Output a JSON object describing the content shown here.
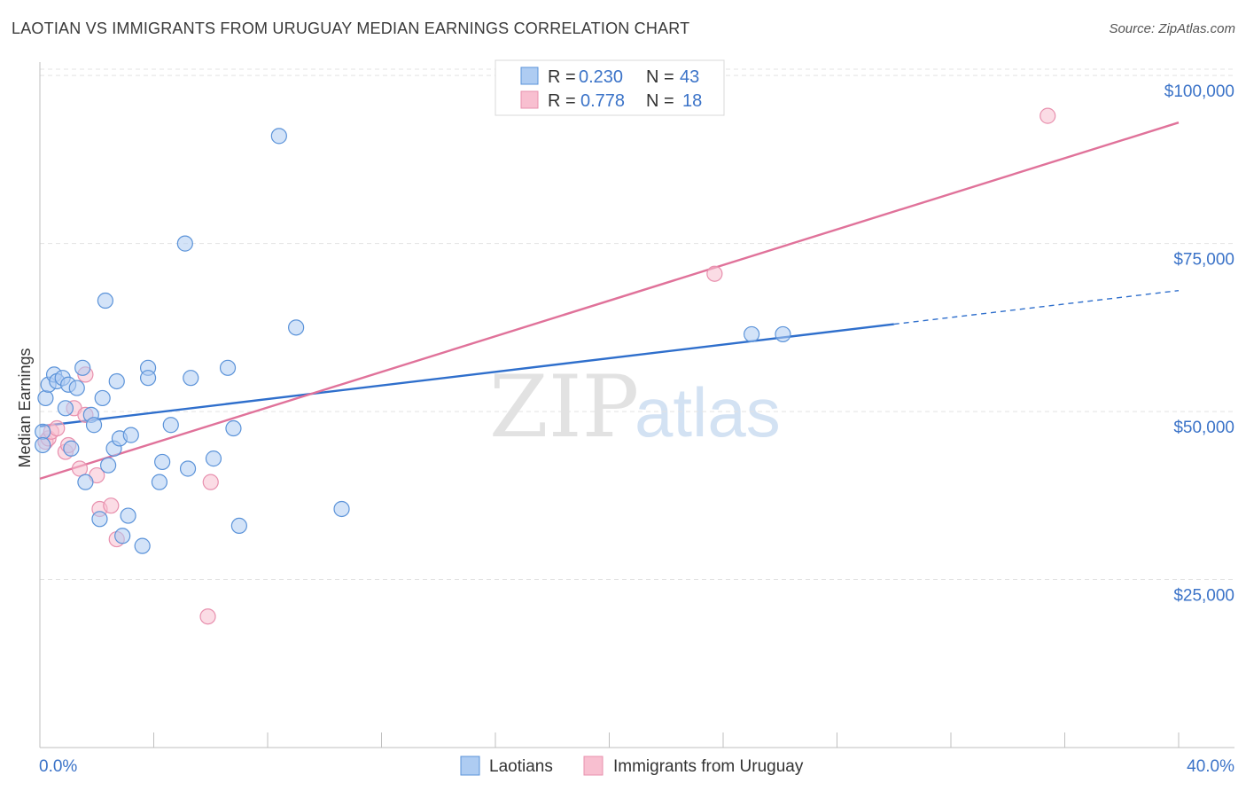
{
  "header": {
    "title": "LAOTIAN VS IMMIGRANTS FROM URUGUAY MEDIAN EARNINGS CORRELATION CHART",
    "source": "Source: ZipAtlas.com"
  },
  "watermark": {
    "zip": "ZIP",
    "atlas": "atlas"
  },
  "legend": {
    "rows": [
      {
        "r_label": "R =",
        "r_value": "0.230",
        "n_label": "N =",
        "n_value": "43"
      },
      {
        "r_label": "R =",
        "r_value": "0.778",
        "n_label": "N =",
        "n_value": "18"
      }
    ]
  },
  "bottom_legend": [
    {
      "label": "Laotians"
    },
    {
      "label": "Immigrants from Uruguay"
    }
  ],
  "colors": {
    "blue_fill": "#aeccf2",
    "blue_stroke": "#5b93d9",
    "blue_line": "#2f6fcc",
    "pink_fill": "#f8bfd0",
    "pink_stroke": "#e890ae",
    "pink_line": "#e0729a",
    "grid": "#e3e3e3",
    "axis_text": "#3b73c8"
  },
  "chart_data": {
    "type": "scatter",
    "title": "LAOTIAN VS IMMIGRANTS FROM URUGUAY MEDIAN EARNINGS CORRELATION CHART",
    "xlabel": "",
    "ylabel": "Median Earnings",
    "xlim": [
      0,
      40
    ],
    "ylim": [
      0,
      102000
    ],
    "x_tick_labels": [
      "0.0%",
      "40.0%"
    ],
    "y_ticks": [
      25000,
      50000,
      75000,
      100000
    ],
    "y_tick_labels": [
      "$25,000",
      "$50,000",
      "$75,000",
      "$100,000"
    ],
    "grid": true,
    "legend_position": "top-center",
    "series": [
      {
        "name": "Laotians",
        "color": "#5b93d9",
        "points": [
          [
            0.2,
            52000
          ],
          [
            0.3,
            54000
          ],
          [
            0.5,
            55500
          ],
          [
            0.6,
            54500
          ],
          [
            0.8,
            55000
          ],
          [
            0.9,
            50500
          ],
          [
            1.0,
            54000
          ],
          [
            1.1,
            44500
          ],
          [
            1.3,
            53500
          ],
          [
            1.5,
            56500
          ],
          [
            1.6,
            39500
          ],
          [
            1.8,
            49500
          ],
          [
            1.9,
            48000
          ],
          [
            2.1,
            34000
          ],
          [
            2.2,
            52000
          ],
          [
            2.3,
            66500
          ],
          [
            2.4,
            42000
          ],
          [
            2.6,
            44500
          ],
          [
            2.7,
            54500
          ],
          [
            2.8,
            46000
          ],
          [
            2.9,
            31500
          ],
          [
            3.1,
            34500
          ],
          [
            3.2,
            46500
          ],
          [
            3.6,
            30000
          ],
          [
            3.8,
            56500
          ],
          [
            3.8,
            55000
          ],
          [
            4.2,
            39500
          ],
          [
            4.3,
            42500
          ],
          [
            4.6,
            48000
          ],
          [
            5.1,
            75000
          ],
          [
            5.2,
            41500
          ],
          [
            5.3,
            55000
          ],
          [
            6.1,
            43000
          ],
          [
            6.6,
            56500
          ],
          [
            6.8,
            47500
          ],
          [
            7.0,
            33000
          ],
          [
            8.4,
            91000
          ],
          [
            9.0,
            62500
          ],
          [
            10.6,
            35500
          ],
          [
            25.0,
            61500
          ],
          [
            26.1,
            61500
          ],
          [
            0.1,
            47000
          ],
          [
            0.1,
            45000
          ]
        ]
      },
      {
        "name": "Immigrants from Uruguay",
        "color": "#e890ae",
        "points": [
          [
            0.2,
            45500
          ],
          [
            0.3,
            46000
          ],
          [
            0.4,
            47000
          ],
          [
            0.6,
            47500
          ],
          [
            0.9,
            44000
          ],
          [
            1.0,
            45000
          ],
          [
            1.2,
            50500
          ],
          [
            1.4,
            41500
          ],
          [
            1.6,
            49500
          ],
          [
            1.6,
            55500
          ],
          [
            2.0,
            40500
          ],
          [
            2.1,
            35500
          ],
          [
            2.5,
            36000
          ],
          [
            2.7,
            31000
          ],
          [
            6.0,
            39500
          ],
          [
            5.9,
            19500
          ],
          [
            23.7,
            70500
          ],
          [
            35.4,
            94000
          ]
        ]
      }
    ],
    "trend_lines": [
      {
        "series": "Laotians",
        "x": [
          0,
          30,
          40
        ],
        "y": [
          47800,
          63000,
          68000
        ],
        "dashed_after_x": 30
      },
      {
        "series": "Immigrants from Uruguay",
        "x": [
          0,
          40
        ],
        "y": [
          40000,
          93000
        ]
      }
    ]
  }
}
